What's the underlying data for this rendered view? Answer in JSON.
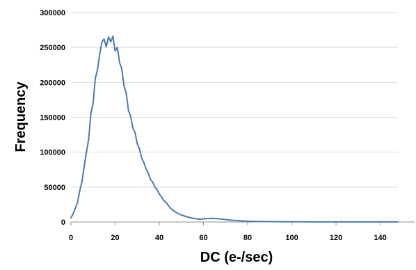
{
  "chart_data": {
    "type": "line",
    "title": "",
    "xlabel": "DC (e-/sec)",
    "ylabel": "Frequency",
    "xlim": [
      0,
      148
    ],
    "ylim": [
      0,
      300000
    ],
    "x_ticks": [
      0,
      20,
      40,
      60,
      80,
      100,
      120,
      140
    ],
    "y_ticks": [
      0,
      50000,
      100000,
      150000,
      200000,
      250000,
      300000
    ],
    "grid": "horizontal",
    "legend": "none",
    "line_color": "#4a7ab0",
    "series": [
      {
        "x": [
          0,
          1,
          2,
          3,
          4,
          5,
          6,
          7,
          8,
          9,
          10,
          11,
          12,
          13,
          14,
          15,
          16,
          17,
          18,
          19,
          20,
          21,
          22,
          23,
          24,
          25,
          26,
          27,
          28,
          29,
          30,
          31,
          32,
          33,
          34,
          35,
          36,
          37,
          38,
          39,
          40,
          41,
          42,
          43,
          44,
          45,
          46,
          47,
          48,
          50,
          52,
          54,
          56,
          58,
          60,
          62,
          64,
          66,
          68,
          70,
          72,
          74,
          76,
          78,
          80,
          82,
          84,
          86,
          88,
          90,
          92,
          94,
          96,
          98,
          100,
          102,
          104,
          106,
          108,
          110,
          112,
          114,
          116,
          118,
          120,
          125,
          130,
          135,
          140,
          145,
          148
        ],
        "y": [
          6000,
          12000,
          20000,
          28000,
          45000,
          58000,
          80000,
          100000,
          118000,
          155000,
          170000,
          205000,
          218000,
          240000,
          258000,
          262000,
          251000,
          265000,
          258000,
          266000,
          245000,
          250000,
          228000,
          220000,
          195000,
          185000,
          160000,
          152000,
          135000,
          128000,
          112000,
          105000,
          92000,
          85000,
          76000,
          70000,
          61000,
          57000,
          50000,
          46000,
          40000,
          36000,
          31000,
          28000,
          24000,
          20000,
          17000,
          15000,
          13000,
          10000,
          8000,
          6000,
          5000,
          4000,
          4500,
          5000,
          5200,
          4800,
          4200,
          3500,
          2800,
          2200,
          1800,
          1400,
          1100,
          900,
          800,
          700,
          600,
          500,
          500,
          400,
          300,
          300,
          200,
          200,
          200,
          200,
          100,
          100,
          100,
          100,
          100,
          100,
          100,
          100,
          100,
          100,
          100,
          100,
          100
        ]
      }
    ]
  }
}
